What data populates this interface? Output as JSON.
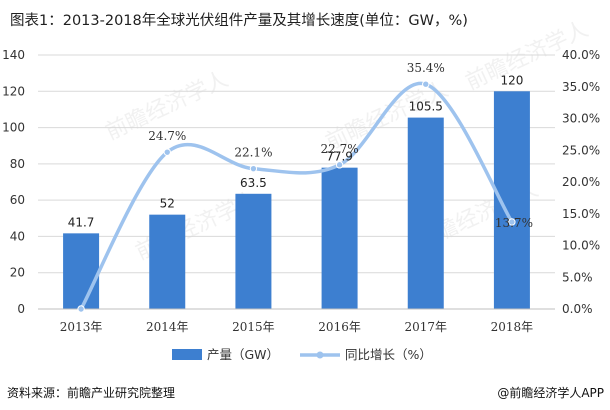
{
  "title": "图表1：2013-2018年全球光伏组件产量及其增长速度(单位：GW，%)",
  "source": "资料来源：前瞻产业研究院整理",
  "brand": "@前瞻经济学人APP",
  "chart_data": {
    "type": "bar+line",
    "categories": [
      "2013年",
      "2014年",
      "2015年",
      "2016年",
      "2017年",
      "2018年"
    ],
    "bar_series": {
      "name": "产量（GW）",
      "values": [
        41.7,
        52,
        63.5,
        77.9,
        105.5,
        120
      ],
      "labels": [
        "41.7",
        "52",
        "63.5",
        "77.9",
        "105.5",
        "120"
      ],
      "color": "#3d7fd0"
    },
    "line_series": {
      "name": "同比增长（%）",
      "values": [
        0,
        24.7,
        22.1,
        22.7,
        35.4,
        13.7
      ],
      "labels": [
        "",
        "24.7%",
        "22.1%",
        "22.7%",
        "35.4%",
        "13.7%"
      ],
      "color": "#9ec3ee"
    },
    "y_left": {
      "min": 0,
      "max": 140,
      "step": 20,
      "ticks": [
        "0",
        "20",
        "40",
        "60",
        "80",
        "100",
        "120",
        "140"
      ]
    },
    "y_right": {
      "min": 0,
      "max": 40,
      "step": 5,
      "ticks": [
        "0.0%",
        "5.0%",
        "10.0%",
        "15.0%",
        "20.0%",
        "25.0%",
        "30.0%",
        "35.0%",
        "40.0%"
      ]
    },
    "grid": true,
    "legend_position": "bottom"
  }
}
